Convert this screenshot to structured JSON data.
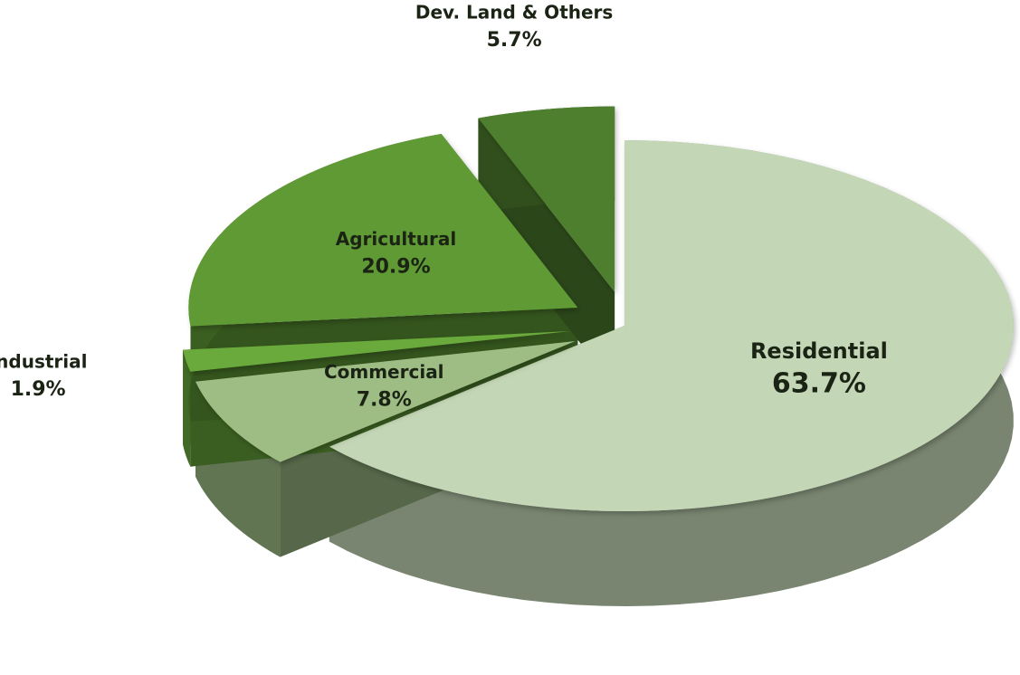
{
  "chart_data": {
    "type": "pie",
    "categories": [
      "Residential",
      "Commercial",
      "Industrial",
      "Agricultural",
      "Dev. Land & Others"
    ],
    "values": [
      63.7,
      7.8,
      1.9,
      20.9,
      5.7
    ],
    "value_labels": [
      "63.7%",
      "7.8%",
      "1.9%",
      "20.9%",
      "5.7%"
    ],
    "colors": [
      "#c3d6b5",
      "#9dbd84",
      "#6aaa3c",
      "#5e9a34",
      "#4e7f2d"
    ]
  }
}
